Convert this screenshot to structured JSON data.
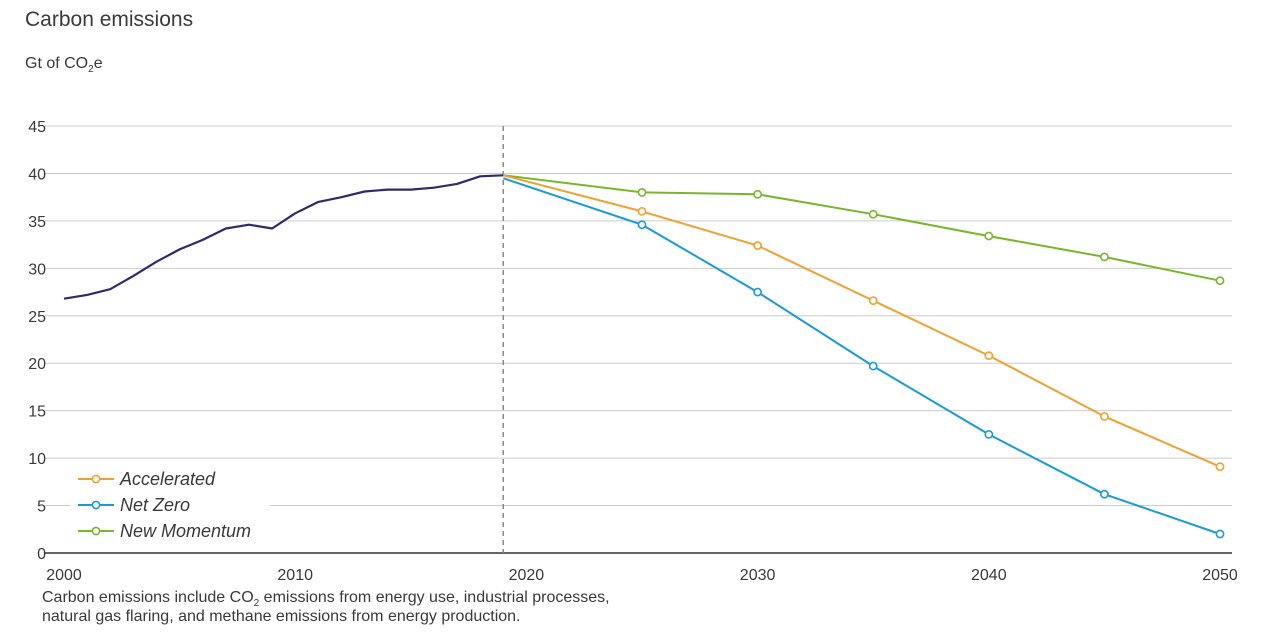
{
  "title": "Carbon emissions",
  "unit": {
    "prefix": "Gt of CO",
    "sub": "2",
    "suffix": "e"
  },
  "note": {
    "line1_a": "Carbon emissions include CO",
    "line1_sub": "2",
    "line1_b": " emissions from energy use, industrial processes,",
    "line2": "natural gas flaring, and methane emissions from energy production."
  },
  "colors": {
    "historical": "#2d2a6e",
    "accelerated": "#f0a030",
    "net_zero": "#1a9ad6",
    "new_momentum": "#7ab52c",
    "grid": "#cccccc",
    "divider": "#888888"
  },
  "chart_data": {
    "type": "line",
    "xlim": [
      2000,
      2050
    ],
    "ylim": [
      0,
      45
    ],
    "x_ticks": [
      2000,
      2010,
      2020,
      2030,
      2040,
      2050
    ],
    "y_ticks": [
      0,
      5,
      10,
      15,
      20,
      25,
      30,
      35,
      40,
      45
    ],
    "grid": true,
    "legend_position": "bottom-left",
    "divider_year": 2019,
    "historical": {
      "x": [
        2000,
        2001,
        2002,
        2003,
        2004,
        2005,
        2006,
        2007,
        2008,
        2009,
        2010,
        2011,
        2012,
        2013,
        2014,
        2015,
        2016,
        2017,
        2018,
        2019
      ],
      "y": [
        26.8,
        27.2,
        27.8,
        29.2,
        30.7,
        32.0,
        33.0,
        34.2,
        34.6,
        34.2,
        35.8,
        37.0,
        37.5,
        38.1,
        38.3,
        38.3,
        38.5,
        38.9,
        39.7,
        39.8
      ]
    },
    "series": [
      {
        "name": "Accelerated",
        "key": "accelerated",
        "x": [
          2019,
          2025,
          2030,
          2035,
          2040,
          2045,
          2050
        ],
        "y": [
          39.8,
          36.0,
          32.4,
          26.6,
          20.8,
          14.4,
          9.1
        ]
      },
      {
        "name": "Net Zero",
        "key": "net_zero",
        "x": [
          2019,
          2025,
          2030,
          2035,
          2040,
          2045,
          2050
        ],
        "y": [
          39.5,
          34.6,
          27.5,
          19.7,
          12.5,
          6.2,
          2.0
        ]
      },
      {
        "name": "New Momentum",
        "key": "new_momentum",
        "x": [
          2019,
          2025,
          2030,
          2035,
          2040,
          2045,
          2050
        ],
        "y": [
          39.8,
          38.0,
          37.8,
          35.7,
          33.4,
          31.2,
          28.7
        ]
      }
    ]
  }
}
